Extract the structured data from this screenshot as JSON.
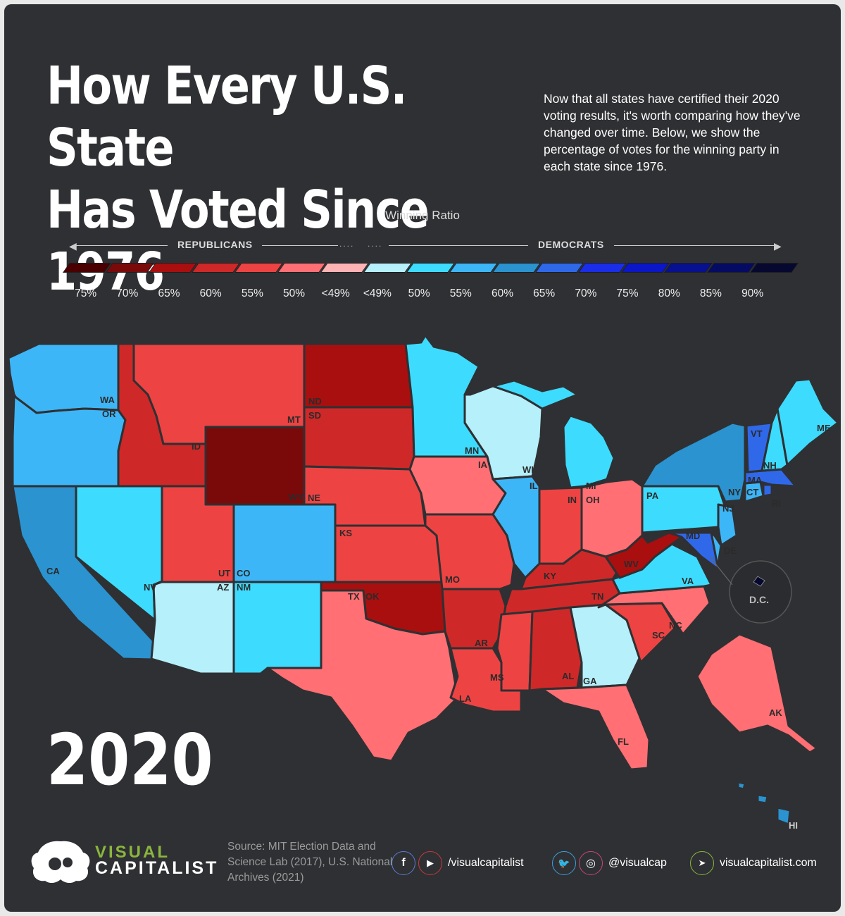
{
  "title_line1": "How Every U.S. State",
  "title_line2": "Has Voted Since 1976",
  "intro": "Now that all states have certified their 2020 voting results, it's worth comparing how they've changed over time. Below, we show the percentage of votes for the winning party in each state since 1976.",
  "legend": {
    "title": "Winning Ratio",
    "left_party": "REPUBLICANS",
    "right_party": "DEMOCRATS",
    "labels": [
      "75%",
      "70%",
      "65%",
      "60%",
      "55%",
      "50%",
      "<49%",
      "<49%",
      "50%",
      "55%",
      "60%",
      "65%",
      "70%",
      "75%",
      "80%",
      "85%",
      "90%"
    ],
    "colors": [
      "#4a0000",
      "#7a0a0a",
      "#a90f0f",
      "#cf2828",
      "#ee4343",
      "#ff6f73",
      "#ffb3b5",
      "#b5f0fb",
      "#3ddcff",
      "#3db6f7",
      "#2a93d0",
      "#2f69ea",
      "#1a2eea",
      "#0a16c8",
      "#07108f",
      "#050b63",
      "#06082f"
    ]
  },
  "year": "2020",
  "colors": {
    "background": "#2f3033",
    "map_border": "#2f3033",
    "accent_green": "#8ab63e"
  },
  "states": {
    "WA": {
      "label": "WA",
      "color": "#3db6f7"
    },
    "OR": {
      "label": "OR",
      "color": "#3db6f7"
    },
    "CA": {
      "label": "CA",
      "color": "#2a93d0"
    },
    "NV": {
      "label": "NV",
      "color": "#3ddcff"
    },
    "ID": {
      "label": "ID",
      "color": "#cf2828"
    },
    "MT": {
      "label": "MT",
      "color": "#ee4343"
    },
    "WY": {
      "label": "WY",
      "color": "#7a0a0a"
    },
    "UT": {
      "label": "UT",
      "color": "#ee4343"
    },
    "AZ": {
      "label": "AZ",
      "color": "#b5f0fb"
    },
    "CO": {
      "label": "CO",
      "color": "#3db6f7"
    },
    "NM": {
      "label": "NM",
      "color": "#3ddcff"
    },
    "ND": {
      "label": "ND",
      "color": "#a90f0f"
    },
    "SD": {
      "label": "SD",
      "color": "#cf2828"
    },
    "NE": {
      "label": "NE",
      "color": "#ee4343"
    },
    "KS": {
      "label": "KS",
      "color": "#ee4343"
    },
    "OK": {
      "label": "OK",
      "color": "#a90f0f"
    },
    "TX": {
      "label": "TX",
      "color": "#ff6f73"
    },
    "MN": {
      "label": "MN",
      "color": "#3ddcff"
    },
    "IA": {
      "label": "IA",
      "color": "#ff6f73"
    },
    "MO": {
      "label": "MO",
      "color": "#ee4343"
    },
    "AR": {
      "label": "AR",
      "color": "#cf2828"
    },
    "LA": {
      "label": "LA",
      "color": "#ee4343"
    },
    "WI": {
      "label": "WI",
      "color": "#b5f0fb"
    },
    "IL": {
      "label": "IL",
      "color": "#3db6f7"
    },
    "MI": {
      "label": "MI",
      "color": "#3ddcff"
    },
    "IN": {
      "label": "IN",
      "color": "#ee4343"
    },
    "OH": {
      "label": "OH",
      "color": "#ff6f73"
    },
    "KY": {
      "label": "KY",
      "color": "#cf2828"
    },
    "TN": {
      "label": "TN",
      "color": "#cf2828"
    },
    "MS": {
      "label": "MS",
      "color": "#ee4343"
    },
    "AL": {
      "label": "AL",
      "color": "#cf2828"
    },
    "GA": {
      "label": "GA",
      "color": "#b5f0fb"
    },
    "FL": {
      "label": "FL",
      "color": "#ff6f73"
    },
    "SC": {
      "label": "SC",
      "color": "#ee4343"
    },
    "NC": {
      "label": "NC",
      "color": "#ff6f73"
    },
    "VA": {
      "label": "VA",
      "color": "#3ddcff"
    },
    "WV": {
      "label": "WV",
      "color": "#a90f0f"
    },
    "PA": {
      "label": "PA",
      "color": "#3ddcff"
    },
    "NY": {
      "label": "NY",
      "color": "#2a93d0"
    },
    "NJ": {
      "label": "NJ",
      "color": "#3db6f7"
    },
    "DE": {
      "label": "DE",
      "color": "#3db6f7"
    },
    "MD": {
      "label": "MD",
      "color": "#2f69ea"
    },
    "CT": {
      "label": "CT",
      "color": "#3db6f7"
    },
    "RI": {
      "label": "RI",
      "color": "#2f69ea"
    },
    "MA": {
      "label": "MA",
      "color": "#2f69ea"
    },
    "VT": {
      "label": "VT",
      "color": "#2f69ea"
    },
    "NH": {
      "label": "NH",
      "color": "#3ddcff"
    },
    "ME": {
      "label": "ME",
      "color": "#3ddcff"
    },
    "AK": {
      "label": "AK",
      "color": "#ff6f73"
    },
    "HI": {
      "label": "HI",
      "color": "#2a93d0"
    },
    "DC": {
      "label": "D.C.",
      "color": "#06082f"
    }
  },
  "footer": {
    "logo_line1": "VISUAL",
    "logo_line2": "CAPITALIST",
    "source": "Source: MIT Election Data and Science Lab (2017), U.S. National Archives (2021)",
    "handle_video": "/visualcapitalist",
    "handle_social": "@visualcap",
    "website": "visualcapitalist.com",
    "icon_facebook": "f",
    "icon_youtube": "▶",
    "icon_twitter": "🐦",
    "icon_instagram": "◎",
    "icon_cursor": "➤"
  }
}
